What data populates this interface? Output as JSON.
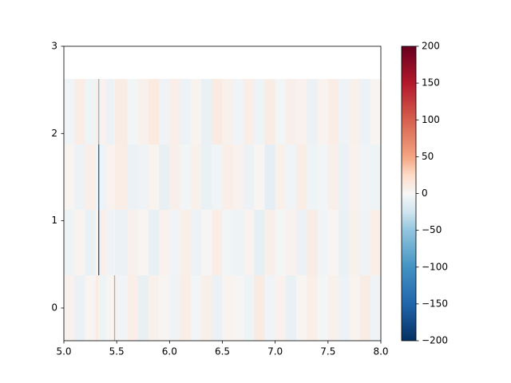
{
  "chart_data": {
    "type": "heatmap",
    "colormap": "RdBu_r",
    "x_edges": [
      5.0,
      5.1,
      5.2,
      5.3,
      5.325,
      5.335,
      5.4,
      5.475,
      5.485,
      5.6,
      5.7,
      5.8,
      5.9,
      6.0,
      6.1,
      6.2,
      6.3,
      6.4,
      6.5,
      6.6,
      6.7,
      6.8,
      6.9,
      7.0,
      7.1,
      7.2,
      7.3,
      7.4,
      7.5,
      7.6,
      7.7,
      7.8,
      7.9,
      8.0
    ],
    "y_edges": [
      -0.375,
      0.375,
      1.125,
      1.875,
      2.625
    ],
    "z": [
      [
        5,
        -8,
        3,
        10,
        4,
        -6,
        2,
        60,
        -4,
        8,
        -10,
        6,
        3,
        -5,
        9,
        -3,
        7,
        -8,
        4,
        2,
        -6,
        11,
        -4,
        5,
        -9,
        3,
        8,
        -2,
        6,
        -7,
        4,
        10,
        -5
      ],
      [
        -6,
        4,
        -9,
        3,
        -160,
        7,
        -5,
        2,
        -8,
        6,
        3,
        -10,
        5,
        -4,
        8,
        -7,
        2,
        9,
        -3,
        -6,
        4,
        -11,
        7,
        -2,
        5,
        -8,
        10,
        -4,
        3,
        -9,
        6,
        -5,
        8
      ],
      [
        3,
        -7,
        8,
        -4,
        -150,
        -6,
        5,
        -3,
        9,
        -8,
        -5,
        4,
        -10,
        7,
        -3,
        6,
        -9,
        -4,
        8,
        5,
        -7,
        3,
        -12,
        6,
        -4,
        9,
        -6,
        -3,
        7,
        -8,
        5,
        -4,
        -6
      ],
      [
        -4,
        9,
        -6,
        7,
        -60,
        5,
        -8,
        4,
        10,
        -3,
        6,
        12,
        -5,
        8,
        -7,
        4,
        -9,
        11,
        6,
        -4,
        8,
        -6,
        10,
        -3,
        7,
        5,
        -8,
        4,
        9,
        -5,
        6,
        -7,
        3
      ]
    ],
    "xlim": [
      5,
      8
    ],
    "xticks": [
      {
        "value": 5,
        "label": "5.0"
      },
      {
        "value": 5.5,
        "label": "5.5"
      },
      {
        "value": 6,
        "label": "6.0"
      },
      {
        "value": 6.5,
        "label": "6.5"
      },
      {
        "value": 7,
        "label": "7.0"
      },
      {
        "value": 7.5,
        "label": "7.5"
      },
      {
        "value": 8,
        "label": "8.0"
      }
    ],
    "ylim": [
      -0.375,
      3
    ],
    "yticks": [
      0,
      1,
      2,
      3
    ],
    "clim": [
      -200,
      200
    ],
    "cticks": [
      {
        "value": -200,
        "label": "−200"
      },
      {
        "value": -150,
        "label": "−150"
      },
      {
        "value": -100,
        "label": "−100"
      },
      {
        "value": -50,
        "label": "−50"
      },
      0,
      50,
      100,
      150,
      200
    ]
  }
}
